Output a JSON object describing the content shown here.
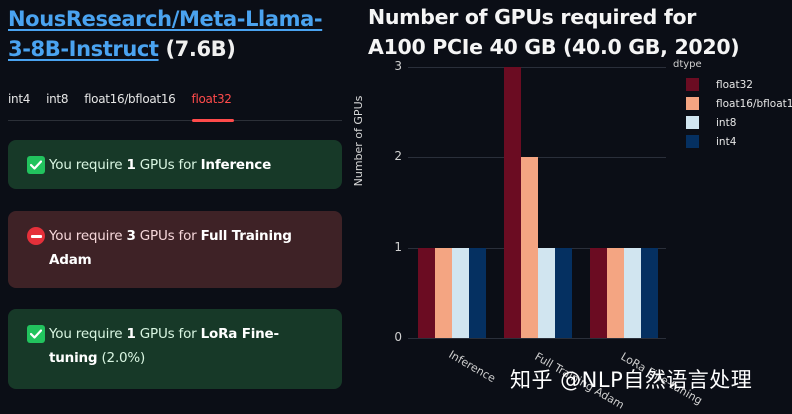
{
  "model": {
    "name": "NousResearch/Meta-Llama-3-8B-Instruct",
    "params": "(7.6B)"
  },
  "tabs": [
    {
      "label": "int4",
      "active": false
    },
    {
      "label": "int8",
      "active": false
    },
    {
      "label": "float16/bfloat16",
      "active": false
    },
    {
      "label": "float32",
      "active": true
    }
  ],
  "alerts": [
    {
      "type": "success",
      "icon": "check-icon",
      "prefix": "You require ",
      "count": "1",
      "middle": " GPUs for ",
      "task": "Inference",
      "suffix": ""
    },
    {
      "type": "error",
      "icon": "no-entry-icon",
      "prefix": "You require ",
      "count": "3",
      "middle": " GPUs for ",
      "task": "Full Training Adam",
      "suffix": ""
    },
    {
      "type": "success",
      "icon": "check-icon",
      "prefix": "You require ",
      "count": "1",
      "middle": " GPUs for ",
      "task": "LoRa Fine-tuning",
      "suffix": " (2.0%)"
    }
  ],
  "colors": {
    "float32": "#6b0c22",
    "float16/bfloat16": "#f4a582",
    "int8": "#d1e5f0",
    "int4": "#053061",
    "accent": "#ff4b4b",
    "link": "#4aa3f0"
  },
  "chart_data": {
    "type": "bar",
    "title": "Number of GPUs required for A100 PCIe 40 GB (40.0 GB, 2020)",
    "title_line1": "Number of GPUs required for",
    "title_line2": "A100 PCIe 40 GB (40.0 GB, 2020)",
    "xlabel": "",
    "ylabel": "Number of GPUs",
    "ylim": [
      0,
      3
    ],
    "yticks": [
      "0",
      "1",
      "2",
      "3"
    ],
    "grid": true,
    "legend_title": "dtype",
    "legend_position": "right",
    "categories": [
      "Inference",
      "Full Training Adam",
      "LoRa Fine-tuning"
    ],
    "series": [
      {
        "name": "float32",
        "color": "#6b0c22",
        "values": [
          1,
          3,
          1
        ]
      },
      {
        "name": "float16/bfloat16",
        "color": "#f4a582",
        "values": [
          1,
          2,
          1
        ]
      },
      {
        "name": "int8",
        "color": "#d1e5f0",
        "values": [
          1,
          1,
          1
        ]
      },
      {
        "name": "int4",
        "color": "#053061",
        "values": [
          1,
          1,
          1
        ]
      }
    ]
  },
  "watermark": "知乎 @NLP自然语言处理"
}
